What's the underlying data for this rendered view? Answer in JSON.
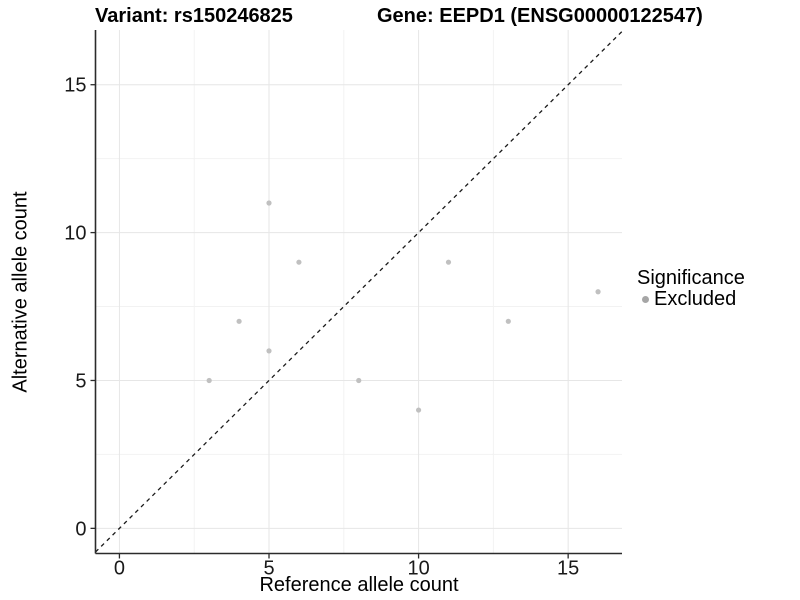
{
  "titles": {
    "variant": "Variant: rs150246825",
    "gene": "Gene: EEPD1 (ENSG00000122547)"
  },
  "chart_data": {
    "type": "scatter",
    "title_left": "Variant: rs150246825",
    "title_right": "Gene: EEPD1 (ENSG00000122547)",
    "xlabel": "Reference allele count",
    "ylabel": "Alternative allele count",
    "xlim": [
      -0.8,
      16.8
    ],
    "ylim": [
      -0.85,
      16.85
    ],
    "xticks": [
      0,
      5,
      10,
      15
    ],
    "yticks": [
      0,
      5,
      10,
      15
    ],
    "xminor": [
      2.5,
      7.5,
      12.5
    ],
    "yminor": [
      2.5,
      7.5,
      12.5
    ],
    "grid": true,
    "identity_line": {
      "slope": 1,
      "intercept": 0,
      "style": "dashed"
    },
    "series": [
      {
        "name": "Excluded",
        "color": "#c0c0c0",
        "points": [
          [
            3,
            5
          ],
          [
            4,
            7
          ],
          [
            5,
            6
          ],
          [
            5,
            11
          ],
          [
            6,
            9
          ],
          [
            8,
            5
          ],
          [
            10,
            4
          ],
          [
            11,
            9
          ],
          [
            13,
            7
          ],
          [
            16,
            8
          ]
        ]
      }
    ],
    "legend": {
      "title": "Significance",
      "position": "right",
      "items": [
        {
          "label": "Excluded",
          "color": "#a6a6a6"
        }
      ]
    }
  },
  "style_colors": {
    "major_grid": "#e6e6e6",
    "minor_grid": "#f2f2f2",
    "axis_line": "#2b2b2b",
    "tick_label": "#1a1a1a",
    "identity_line": "#1a1a1a"
  }
}
